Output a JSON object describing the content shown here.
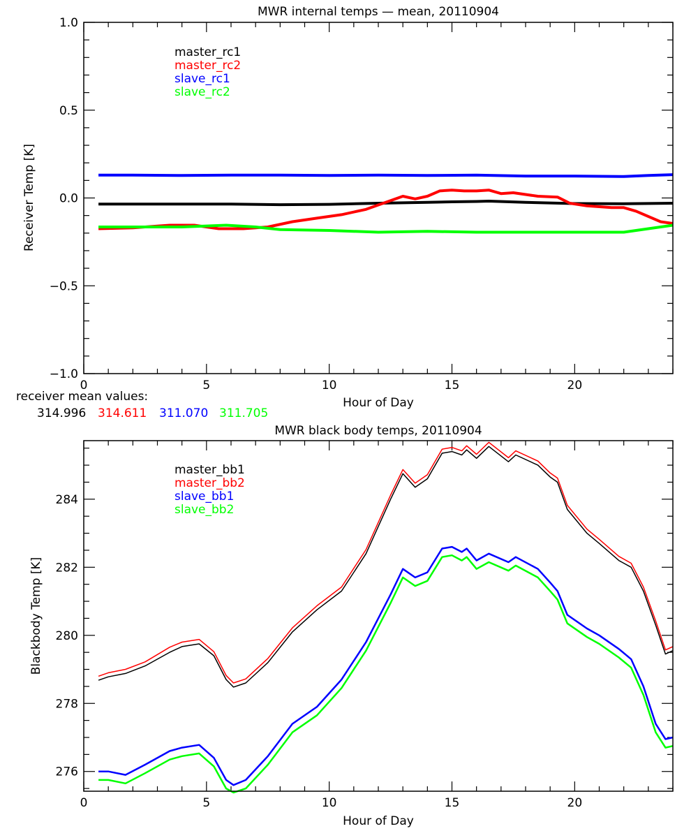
{
  "chart_data": [
    {
      "type": "line",
      "title": "MWR internal temps — mean, 20110904",
      "xlabel": "Hour of Day",
      "ylabel": "Receiver Temp [K]",
      "xlim": [
        0,
        24
      ],
      "ylim": [
        -1.0,
        1.0
      ],
      "xticks": [
        0,
        5,
        10,
        15,
        20
      ],
      "xtick_labels": [
        "0",
        "5",
        "10",
        "15",
        "20"
      ],
      "yticks": [
        -1.0,
        -0.5,
        0.0,
        0.5,
        1.0
      ],
      "ytick_labels": [
        "−1.0",
        "−0.5",
        "0.0",
        "0.5",
        "1.0"
      ],
      "grid": false,
      "legend_position": "top-left",
      "series": [
        {
          "name": "master_rc1",
          "color": "#000000",
          "x": [
            0.6,
            2,
            4,
            6,
            8,
            10,
            12,
            14,
            15,
            16,
            16.5,
            18,
            20,
            22,
            24
          ],
          "y": [
            -0.035,
            -0.035,
            -0.035,
            -0.035,
            -0.038,
            -0.036,
            -0.03,
            -0.025,
            -0.022,
            -0.02,
            -0.018,
            -0.025,
            -0.032,
            -0.033,
            -0.03
          ]
        },
        {
          "name": "master_rc2",
          "color": "#ff0000",
          "x": [
            0.6,
            2,
            3.5,
            4.5,
            5.5,
            6.5,
            7.5,
            8.5,
            9.5,
            10.5,
            11.5,
            12.3,
            13.0,
            13.5,
            14.0,
            14.5,
            15.0,
            15.5,
            16.0,
            16.5,
            17.0,
            17.5,
            18.5,
            19.3,
            19.8,
            20.5,
            21.5,
            22.0,
            22.5,
            23.5,
            24.0
          ],
          "y": [
            -0.175,
            -0.17,
            -0.155,
            -0.155,
            -0.175,
            -0.175,
            -0.165,
            -0.135,
            -0.115,
            -0.095,
            -0.065,
            -0.025,
            0.01,
            -0.005,
            0.01,
            0.04,
            0.045,
            0.04,
            0.04,
            0.045,
            0.025,
            0.03,
            0.01,
            0.005,
            -0.03,
            -0.045,
            -0.055,
            -0.055,
            -0.075,
            -0.135,
            -0.145
          ]
        },
        {
          "name": "slave_rc1",
          "color": "#0000ff",
          "x": [
            0.6,
            2,
            4,
            6,
            8,
            10,
            12,
            14,
            16,
            18,
            20,
            22,
            23,
            24
          ],
          "y": [
            0.13,
            0.13,
            0.128,
            0.13,
            0.13,
            0.128,
            0.13,
            0.128,
            0.13,
            0.125,
            0.125,
            0.122,
            0.128,
            0.133
          ]
        },
        {
          "name": "slave_rc2",
          "color": "#00ff00",
          "x": [
            0.6,
            2,
            4,
            5.8,
            7,
            8,
            10,
            12,
            14,
            16,
            18,
            20,
            22,
            23,
            24
          ],
          "y": [
            -0.165,
            -0.165,
            -0.165,
            -0.155,
            -0.165,
            -0.18,
            -0.185,
            -0.195,
            -0.19,
            -0.195,
            -0.195,
            -0.195,
            -0.195,
            -0.175,
            -0.155
          ]
        }
      ]
    },
    {
      "type": "line",
      "title": "MWR black body temps, 20110904",
      "xlabel": "Hour of Day",
      "ylabel": "Blackbody Temp [K]",
      "xlim": [
        0,
        24
      ],
      "ylim": [
        275.42,
        285.72
      ],
      "xticks": [
        0,
        5,
        10,
        15,
        20
      ],
      "xtick_labels": [
        "0",
        "5",
        "10",
        "15",
        "20"
      ],
      "yticks": [
        276,
        278,
        280,
        282,
        284
      ],
      "ytick_labels": [
        "276",
        "278",
        "280",
        "282",
        "284"
      ],
      "grid": false,
      "legend_position": "top-left",
      "series": [
        {
          "name": "master_bb1",
          "color": "#000000",
          "x": [
            0.6,
            1.0,
            1.7,
            2.5,
            3.5,
            4.0,
            4.7,
            5.3,
            5.8,
            6.1,
            6.6,
            7.5,
            8.5,
            9.5,
            10.5,
            11.5,
            12.5,
            13.0,
            13.5,
            14.0,
            14.6,
            15.0,
            15.4,
            15.6,
            16.0,
            16.5,
            17.3,
            17.6,
            18.5,
            19.0,
            19.3,
            19.7,
            20.5,
            21.0,
            21.8,
            22.3,
            22.8,
            23.3,
            23.7,
            24.0
          ],
          "y": [
            278.68,
            278.78,
            278.88,
            279.1,
            279.5,
            279.67,
            279.75,
            279.4,
            278.7,
            278.48,
            278.6,
            279.2,
            280.1,
            280.75,
            281.3,
            282.4,
            284.0,
            284.75,
            284.35,
            284.6,
            285.35,
            285.4,
            285.3,
            285.45,
            285.2,
            285.55,
            285.1,
            285.3,
            285.0,
            284.65,
            284.5,
            283.7,
            283.0,
            282.7,
            282.2,
            282.0,
            281.3,
            280.3,
            279.45,
            279.55
          ]
        },
        {
          "name": "master_bb2",
          "color": "#ff0000",
          "x": [
            0.6,
            1.0,
            1.7,
            2.5,
            3.5,
            4.0,
            4.7,
            5.3,
            5.8,
            6.1,
            6.6,
            7.5,
            8.5,
            9.5,
            10.5,
            11.5,
            12.5,
            13.0,
            13.5,
            14.0,
            14.6,
            15.0,
            15.4,
            15.6,
            16.0,
            16.5,
            17.3,
            17.6,
            18.5,
            19.0,
            19.3,
            19.7,
            20.5,
            21.0,
            21.8,
            22.3,
            22.8,
            23.3,
            23.7,
            24.0
          ],
          "y": [
            278.8,
            278.9,
            279.0,
            279.22,
            279.65,
            279.8,
            279.88,
            279.52,
            278.82,
            278.6,
            278.72,
            279.32,
            280.22,
            280.87,
            281.42,
            282.52,
            284.12,
            284.87,
            284.47,
            284.72,
            285.47,
            285.52,
            285.42,
            285.57,
            285.32,
            285.67,
            285.22,
            285.42,
            285.12,
            284.77,
            284.62,
            283.82,
            283.12,
            282.82,
            282.32,
            282.12,
            281.42,
            280.42,
            279.57,
            279.67
          ]
        },
        {
          "name": "slave_bb1",
          "color": "#0000ff",
          "x": [
            0.6,
            1.0,
            1.7,
            2.5,
            3.5,
            4.0,
            4.7,
            5.3,
            5.8,
            6.1,
            6.6,
            7.5,
            8.5,
            9.5,
            10.5,
            11.5,
            12.5,
            13.0,
            13.5,
            14.0,
            14.6,
            15.0,
            15.4,
            15.6,
            16.0,
            16.5,
            17.3,
            17.6,
            18.5,
            19.0,
            19.3,
            19.7,
            20.5,
            21.0,
            21.8,
            22.3,
            22.8,
            23.3,
            23.7,
            24.0
          ],
          "y": [
            276.0,
            276.0,
            275.9,
            276.2,
            276.6,
            276.7,
            276.78,
            276.4,
            275.75,
            275.6,
            275.75,
            276.45,
            277.4,
            277.9,
            278.7,
            279.8,
            281.2,
            281.95,
            281.7,
            281.85,
            282.55,
            282.6,
            282.45,
            282.55,
            282.2,
            282.4,
            282.15,
            282.3,
            281.95,
            281.55,
            281.3,
            280.6,
            280.2,
            280.0,
            279.6,
            279.3,
            278.5,
            277.4,
            276.95,
            277.0
          ]
        },
        {
          "name": "slave_bb2",
          "color": "#00ff00",
          "x": [
            0.6,
            1.0,
            1.7,
            2.5,
            3.5,
            4.0,
            4.7,
            5.3,
            5.8,
            6.1,
            6.6,
            7.5,
            8.5,
            9.5,
            10.5,
            11.5,
            12.5,
            13.0,
            13.5,
            14.0,
            14.6,
            15.0,
            15.4,
            15.6,
            16.0,
            16.5,
            17.3,
            17.6,
            18.5,
            19.0,
            19.3,
            19.7,
            20.5,
            21.0,
            21.8,
            22.3,
            22.8,
            23.3,
            23.7,
            24.0
          ],
          "y": [
            275.75,
            275.75,
            275.65,
            275.95,
            276.35,
            276.45,
            276.53,
            276.15,
            275.5,
            275.38,
            275.5,
            276.2,
            277.15,
            277.65,
            278.45,
            279.55,
            280.95,
            281.7,
            281.45,
            281.6,
            282.3,
            282.35,
            282.2,
            282.3,
            281.95,
            282.15,
            281.9,
            282.05,
            281.7,
            281.3,
            281.05,
            280.35,
            279.95,
            279.75,
            279.35,
            279.05,
            278.25,
            277.15,
            276.7,
            276.75
          ]
        }
      ]
    }
  ],
  "receiver_means": {
    "label": "receiver mean values:",
    "values": [
      {
        "text": "314.996",
        "color": "#000000"
      },
      {
        "text": "314.611",
        "color": "#ff0000"
      },
      {
        "text": "311.070",
        "color": "#0000ff"
      },
      {
        "text": "311.705",
        "color": "#00ff00"
      }
    ]
  }
}
